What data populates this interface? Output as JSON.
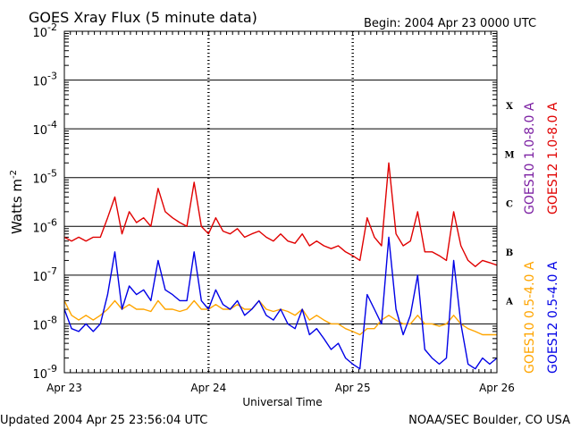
{
  "chart_data": {
    "type": "line",
    "title": "GOES Xray Flux (5 minute data)",
    "begin_label": "Begin:  2004 Apr 23 0000 UTC",
    "xlabel": "Universal Time",
    "ylabel": "Watts m",
    "ylabel_sup": "-2",
    "yscale": "log",
    "ylim": [
      1e-09,
      0.01
    ],
    "xlim": [
      0,
      3
    ],
    "x_unit": "days since 2004 Apr 23 0000 UTC",
    "x_ticks": [
      {
        "x": 0,
        "label": "Apr 23"
      },
      {
        "x": 1,
        "label": "Apr 24"
      },
      {
        "x": 2,
        "label": "Apr 25"
      },
      {
        "x": 3,
        "label": "Apr 26"
      }
    ],
    "y_ticks": [
      {
        "exp": -9,
        "base": "10",
        "sup": "-9"
      },
      {
        "exp": -8,
        "base": "10",
        "sup": "-8"
      },
      {
        "exp": -7,
        "base": "10",
        "sup": "-7"
      },
      {
        "exp": -6,
        "base": "10",
        "sup": "-6"
      },
      {
        "exp": -5,
        "base": "10",
        "sup": "-5"
      },
      {
        "exp": -4,
        "base": "10",
        "sup": "-4"
      },
      {
        "exp": -3,
        "base": "10",
        "sup": "-3"
      },
      {
        "exp": -2,
        "base": "10",
        "sup": "-2"
      }
    ],
    "grid": true,
    "flare_classes": [
      {
        "label": "A",
        "level": 1e-08
      },
      {
        "label": "B",
        "level": 1e-07
      },
      {
        "label": "C",
        "level": 1e-06
      },
      {
        "label": "M",
        "level": 1e-05
      },
      {
        "label": "X",
        "level": 0.0001
      }
    ],
    "series": [
      {
        "name": "GOES10 1.0-8.0 A",
        "color": "#7b1fa2",
        "x": [
          0,
          3
        ],
        "y": [
          null,
          null
        ]
      },
      {
        "name": "GOES12 1.0-8.0 A",
        "color": "#e00000",
        "x": [
          0,
          0.05,
          0.1,
          0.15,
          0.2,
          0.25,
          0.3,
          0.35,
          0.4,
          0.45,
          0.5,
          0.55,
          0.6,
          0.65,
          0.7,
          0.75,
          0.8,
          0.85,
          0.9,
          0.95,
          1.0,
          1.05,
          1.1,
          1.15,
          1.2,
          1.25,
          1.3,
          1.35,
          1.4,
          1.45,
          1.5,
          1.55,
          1.6,
          1.65,
          1.7,
          1.75,
          1.8,
          1.85,
          1.9,
          1.95,
          2.0,
          2.05,
          2.1,
          2.15,
          2.2,
          2.25,
          2.3,
          2.35,
          2.4,
          2.45,
          2.5,
          2.55,
          2.6,
          2.65,
          2.7,
          2.75,
          2.8,
          2.85,
          2.9,
          2.95,
          3.0
        ],
        "y": [
          6e-07,
          5e-07,
          6e-07,
          5e-07,
          6e-07,
          6e-07,
          1.5e-06,
          4e-06,
          7e-07,
          2e-06,
          1.2e-06,
          1.5e-06,
          1e-06,
          6e-06,
          2e-06,
          1.5e-06,
          1.2e-06,
          1e-06,
          8e-06,
          1e-06,
          7e-07,
          1.5e-06,
          8e-07,
          7e-07,
          9e-07,
          6e-07,
          7e-07,
          8e-07,
          6e-07,
          5e-07,
          7e-07,
          5e-07,
          4.5e-07,
          7e-07,
          4e-07,
          5e-07,
          4e-07,
          3.5e-07,
          4e-07,
          3e-07,
          2.5e-07,
          2e-07,
          1.5e-06,
          6e-07,
          4e-07,
          2e-05,
          7e-07,
          4e-07,
          5e-07,
          2e-06,
          3e-07,
          3e-07,
          2.5e-07,
          2e-07,
          2e-06,
          4e-07,
          2e-07,
          1.5e-07,
          2e-07,
          1.8e-07,
          1.6e-07
        ]
      },
      {
        "name": "GOES10 0.5-4.0 A",
        "color": "#ffa500",
        "x": [
          0,
          0.05,
          0.1,
          0.15,
          0.2,
          0.25,
          0.3,
          0.35,
          0.4,
          0.45,
          0.5,
          0.55,
          0.6,
          0.65,
          0.7,
          0.75,
          0.8,
          0.85,
          0.9,
          0.95,
          1.0,
          1.05,
          1.1,
          1.15,
          1.2,
          1.25,
          1.3,
          1.35,
          1.4,
          1.45,
          1.5,
          1.55,
          1.6,
          1.65,
          1.7,
          1.75,
          1.8,
          1.85,
          1.9,
          1.95,
          2.0,
          2.05,
          2.1,
          2.15,
          2.2,
          2.25,
          2.3,
          2.35,
          2.4,
          2.45,
          2.5,
          2.55,
          2.6,
          2.65,
          2.7,
          2.75,
          2.8,
          2.85,
          2.9,
          2.95,
          3.0
        ],
        "y": [
          3e-08,
          1.5e-08,
          1.2e-08,
          1.5e-08,
          1.2e-08,
          1.5e-08,
          2e-08,
          3e-08,
          2e-08,
          2.5e-08,
          2e-08,
          2e-08,
          1.8e-08,
          3e-08,
          2e-08,
          2e-08,
          1.8e-08,
          2e-08,
          3e-08,
          2e-08,
          2e-08,
          2.5e-08,
          2e-08,
          2e-08,
          2.5e-08,
          2e-08,
          2e-08,
          3e-08,
          2e-08,
          1.8e-08,
          2e-08,
          1.8e-08,
          1.5e-08,
          2e-08,
          1.2e-08,
          1.5e-08,
          1.2e-08,
          1e-08,
          1e-08,
          8e-09,
          7e-09,
          6e-09,
          8e-09,
          8e-09,
          1.2e-08,
          1.5e-08,
          1.2e-08,
          1e-08,
          1e-08,
          1.5e-08,
          1e-08,
          1e-08,
          9e-09,
          1e-08,
          1.5e-08,
          1e-08,
          8e-09,
          7e-09,
          6e-09,
          6e-09,
          6e-09
        ]
      },
      {
        "name": "GOES12 0.5-4.0 A",
        "color": "#0000e6",
        "x": [
          0,
          0.05,
          0.1,
          0.15,
          0.2,
          0.25,
          0.3,
          0.35,
          0.4,
          0.45,
          0.5,
          0.55,
          0.6,
          0.65,
          0.7,
          0.75,
          0.8,
          0.85,
          0.9,
          0.95,
          1.0,
          1.05,
          1.1,
          1.15,
          1.2,
          1.25,
          1.3,
          1.35,
          1.4,
          1.45,
          1.5,
          1.55,
          1.6,
          1.65,
          1.7,
          1.75,
          1.8,
          1.85,
          1.9,
          1.95,
          2.0,
          2.05,
          2.1,
          2.15,
          2.2,
          2.25,
          2.3,
          2.35,
          2.4,
          2.45,
          2.5,
          2.55,
          2.6,
          2.65,
          2.7,
          2.75,
          2.8,
          2.85,
          2.9,
          2.95,
          3.0
        ],
        "y": [
          2e-08,
          8e-09,
          7e-09,
          1e-08,
          7e-09,
          1e-08,
          4e-08,
          3e-07,
          2e-08,
          6e-08,
          4e-08,
          5e-08,
          3e-08,
          2e-07,
          5e-08,
          4e-08,
          3e-08,
          3e-08,
          3e-07,
          3e-08,
          2e-08,
          5e-08,
          2.5e-08,
          2e-08,
          3e-08,
          1.5e-08,
          2e-08,
          3e-08,
          1.5e-08,
          1.2e-08,
          2e-08,
          1e-08,
          8e-09,
          2e-08,
          6e-09,
          8e-09,
          5e-09,
          3e-09,
          4e-09,
          2e-09,
          1.5e-09,
          1.2e-09,
          4e-08,
          2e-08,
          1e-08,
          6e-07,
          2e-08,
          6e-09,
          1.5e-08,
          1e-07,
          3e-09,
          2e-09,
          1.5e-09,
          2e-09,
          2e-07,
          1e-08,
          1.5e-09,
          1.2e-09,
          2e-09,
          1.5e-09,
          2e-09
        ]
      }
    ]
  },
  "footer": {
    "updated": "Updated 2004 Apr 25 23:56:04 UTC",
    "credit": "NOAA/SEC Boulder, CO USA"
  }
}
